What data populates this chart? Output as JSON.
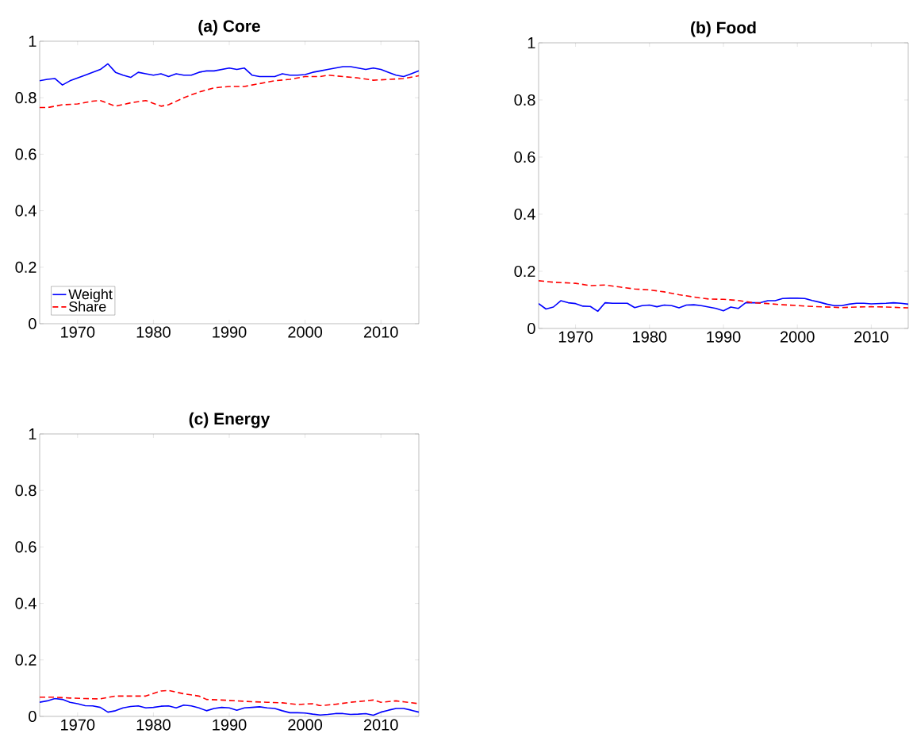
{
  "chart_data": [
    {
      "type": "line",
      "title": "(a) Core",
      "xlim": [
        1965,
        2015
      ],
      "ylim": [
        0,
        1
      ],
      "xticks": [
        1970,
        1980,
        1990,
        2000,
        2010
      ],
      "yticks": [
        0,
        0.2,
        0.4,
        0.6,
        0.8,
        1
      ],
      "grid": false,
      "legend": "bottom left",
      "marker": "none",
      "series": [
        {
          "name": "Weight",
          "color": "#0000ff",
          "line_style": "solid",
          "x": [
            1965,
            1966,
            1967,
            1968,
            1969,
            1970,
            1971,
            1972,
            1973,
            1974,
            1975,
            1976,
            1977,
            1978,
            1979,
            1980,
            1981,
            1982,
            1983,
            1984,
            1985,
            1986,
            1987,
            1988,
            1989,
            1990,
            1991,
            1992,
            1993,
            1994,
            1995,
            1996,
            1997,
            1998,
            1999,
            2000,
            2001,
            2002,
            2003,
            2004,
            2005,
            2006,
            2007,
            2008,
            2009,
            2010,
            2011,
            2012,
            2013,
            2014,
            2015
          ],
          "values": [
            0.86,
            0.865,
            0.868,
            0.845,
            0.86,
            0.87,
            0.88,
            0.89,
            0.9,
            0.92,
            0.89,
            0.88,
            0.872,
            0.89,
            0.885,
            0.88,
            0.885,
            0.875,
            0.885,
            0.88,
            0.88,
            0.89,
            0.895,
            0.895,
            0.9,
            0.905,
            0.9,
            0.905,
            0.88,
            0.875,
            0.875,
            0.875,
            0.885,
            0.88,
            0.88,
            0.882,
            0.89,
            0.895,
            0.9,
            0.905,
            0.91,
            0.91,
            0.905,
            0.9,
            0.905,
            0.9,
            0.89,
            0.88,
            0.875,
            0.885,
            0.895
          ]
        },
        {
          "name": "Share",
          "color": "#ff0000",
          "line_style": "dashed",
          "x": [
            1965,
            1966,
            1968,
            1970,
            1972,
            1973,
            1975,
            1977,
            1979,
            1981,
            1982,
            1984,
            1986,
            1988,
            1990,
            1992,
            1994,
            1996,
            1998,
            2000,
            2002,
            2003,
            2005,
            2007,
            2009,
            2011,
            2013,
            2015
          ],
          "values": [
            0.765,
            0.765,
            0.775,
            0.778,
            0.788,
            0.79,
            0.77,
            0.782,
            0.79,
            0.77,
            0.775,
            0.8,
            0.82,
            0.835,
            0.84,
            0.84,
            0.85,
            0.86,
            0.865,
            0.875,
            0.875,
            0.88,
            0.875,
            0.87,
            0.862,
            0.865,
            0.868,
            0.878
          ]
        }
      ]
    },
    {
      "type": "line",
      "title": "(b) Food",
      "xlim": [
        1965,
        2015
      ],
      "ylim": [
        0,
        1
      ],
      "xticks": [
        1970,
        1980,
        1990,
        2000,
        2010
      ],
      "yticks": [
        0,
        0.2,
        0.4,
        0.6,
        0.8,
        1
      ],
      "grid": false,
      "legend": false,
      "marker": "none",
      "series": [
        {
          "color": "#0000ff",
          "line_style": "solid",
          "x": [
            1965,
            1966,
            1967,
            1968,
            1969,
            1970,
            1971,
            1972,
            1973,
            1974,
            1975,
            1976,
            1977,
            1978,
            1979,
            1980,
            1981,
            1982,
            1983,
            1984,
            1985,
            1986,
            1987,
            1988,
            1989,
            1990,
            1991,
            1992,
            1993,
            1994,
            1995,
            1996,
            1997,
            1998,
            1999,
            2000,
            2001,
            2002,
            2003,
            2004,
            2005,
            2006,
            2007,
            2008,
            2009,
            2010,
            2011,
            2012,
            2013,
            2014,
            2015
          ],
          "values": [
            0.087,
            0.068,
            0.075,
            0.097,
            0.09,
            0.087,
            0.078,
            0.077,
            0.06,
            0.09,
            0.088,
            0.088,
            0.088,
            0.073,
            0.08,
            0.082,
            0.076,
            0.082,
            0.08,
            0.072,
            0.082,
            0.083,
            0.08,
            0.075,
            0.07,
            0.062,
            0.075,
            0.07,
            0.09,
            0.09,
            0.09,
            0.097,
            0.097,
            0.105,
            0.106,
            0.106,
            0.105,
            0.098,
            0.092,
            0.085,
            0.08,
            0.08,
            0.085,
            0.088,
            0.088,
            0.086,
            0.087,
            0.088,
            0.09,
            0.088,
            0.085
          ]
        },
        {
          "color": "#ff0000",
          "line_style": "dashed",
          "x": [
            1965,
            1967,
            1970,
            1972,
            1974,
            1976,
            1978,
            1980,
            1982,
            1984,
            1986,
            1988,
            1990,
            1992,
            1994,
            1996,
            1998,
            2000,
            2002,
            2004,
            2006,
            2008,
            2010,
            2012,
            2015
          ],
          "values": [
            0.167,
            0.162,
            0.158,
            0.15,
            0.152,
            0.145,
            0.138,
            0.135,
            0.128,
            0.118,
            0.11,
            0.103,
            0.102,
            0.098,
            0.09,
            0.087,
            0.083,
            0.08,
            0.077,
            0.075,
            0.073,
            0.075,
            0.076,
            0.075,
            0.072
          ]
        }
      ]
    },
    {
      "type": "line",
      "title": "(c) Energy",
      "xlim": [
        1965,
        2015
      ],
      "ylim": [
        0,
        1
      ],
      "xticks": [
        1970,
        1980,
        1990,
        2000,
        2010
      ],
      "yticks": [
        0,
        0.2,
        0.4,
        0.6,
        0.8,
        1
      ],
      "grid": false,
      "legend": false,
      "marker": "none",
      "series": [
        {
          "color": "#0000ff",
          "line_style": "solid",
          "x": [
            1965,
            1966,
            1967,
            1968,
            1969,
            1970,
            1971,
            1972,
            1973,
            1974,
            1975,
            1976,
            1977,
            1978,
            1979,
            1980,
            1981,
            1982,
            1983,
            1984,
            1985,
            1986,
            1987,
            1988,
            1989,
            1990,
            1991,
            1992,
            1993,
            1994,
            1995,
            1996,
            1997,
            1998,
            1999,
            2000,
            2001,
            2002,
            2003,
            2004,
            2005,
            2006,
            2007,
            2008,
            2009,
            2010,
            2011,
            2012,
            2013,
            2014,
            2015
          ],
          "values": [
            0.05,
            0.055,
            0.063,
            0.06,
            0.05,
            0.045,
            0.038,
            0.037,
            0.032,
            0.015,
            0.02,
            0.03,
            0.035,
            0.037,
            0.03,
            0.032,
            0.036,
            0.037,
            0.03,
            0.04,
            0.037,
            0.03,
            0.02,
            0.028,
            0.032,
            0.03,
            0.022,
            0.03,
            0.032,
            0.034,
            0.03,
            0.028,
            0.02,
            0.013,
            0.013,
            0.012,
            0.008,
            0.005,
            0.007,
            0.01,
            0.01,
            0.007,
            0.008,
            0.01,
            0.004,
            0.015,
            0.022,
            0.028,
            0.028,
            0.022,
            0.015
          ]
        },
        {
          "color": "#ff0000",
          "line_style": "dashed",
          "x": [
            1965,
            1967,
            1969,
            1971,
            1973,
            1975,
            1977,
            1979,
            1981,
            1982,
            1984,
            1986,
            1987,
            1989,
            1991,
            1993,
            1995,
            1997,
            1999,
            2001,
            2002,
            2004,
            2006,
            2008,
            2009,
            2010,
            2012,
            2015
          ],
          "values": [
            0.068,
            0.068,
            0.065,
            0.063,
            0.062,
            0.072,
            0.072,
            0.072,
            0.09,
            0.092,
            0.08,
            0.072,
            0.06,
            0.058,
            0.055,
            0.052,
            0.05,
            0.048,
            0.042,
            0.045,
            0.038,
            0.043,
            0.05,
            0.055,
            0.058,
            0.05,
            0.055,
            0.045
          ]
        }
      ]
    }
  ]
}
